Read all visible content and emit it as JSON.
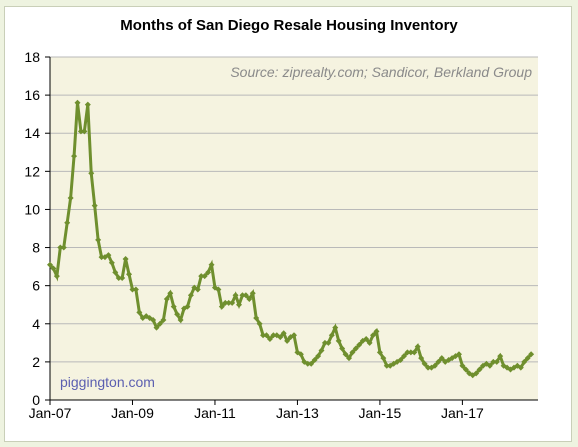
{
  "chart_data": {
    "type": "line",
    "title": "Months of San Diego Resale Housing Inventory",
    "source_note": "Source: ziprealty.com; Sandicor, Berkland Group",
    "watermark": "piggington.com",
    "xlabel": "",
    "ylabel": "",
    "ylim": [
      0,
      18
    ],
    "y_ticks": [
      0,
      2,
      4,
      6,
      8,
      10,
      12,
      14,
      16,
      18
    ],
    "x_tick_labels": [
      "Jan-07",
      "Jan-09",
      "Jan-11",
      "Jan-13",
      "Jan-15",
      "Jan-17"
    ],
    "x_range_months": [
      0,
      142
    ],
    "grid": "horizontal",
    "series_color": "#6f8f2e",
    "plot_background": "#f5f3e0",
    "series": [
      {
        "name": "",
        "start": "Jan-07",
        "frequency": "monthly",
        "values": [
          7.1,
          6.9,
          6.5,
          8.0,
          8.0,
          9.3,
          10.6,
          12.8,
          15.6,
          14.1,
          14.1,
          15.5,
          11.9,
          10.2,
          8.4,
          7.5,
          7.5,
          7.6,
          7.2,
          6.7,
          6.4,
          6.4,
          7.4,
          6.6,
          5.8,
          5.8,
          4.6,
          4.3,
          4.4,
          4.3,
          4.2,
          3.8,
          4.0,
          4.2,
          5.3,
          5.6,
          4.9,
          4.5,
          4.2,
          4.8,
          4.9,
          5.5,
          5.9,
          5.8,
          6.5,
          6.5,
          6.7,
          7.1,
          5.9,
          5.8,
          4.9,
          5.1,
          5.1,
          5.1,
          5.5,
          5.0,
          5.5,
          5.5,
          5.3,
          5.6,
          4.3,
          4.0,
          3.4,
          3.4,
          3.2,
          3.4,
          3.4,
          3.3,
          3.5,
          3.1,
          3.3,
          3.4,
          2.5,
          2.4,
          2.0,
          1.9,
          1.9,
          2.1,
          2.3,
          2.6,
          3.0,
          3.0,
          3.4,
          3.8,
          3.1,
          2.7,
          2.4,
          2.2,
          2.5,
          2.7,
          2.9,
          3.1,
          3.2,
          3.0,
          3.4,
          3.6,
          2.5,
          2.2,
          1.8,
          1.8,
          1.9,
          2.0,
          2.1,
          2.3,
          2.5,
          2.5,
          2.5,
          2.8,
          2.2,
          1.9,
          1.7,
          1.7,
          1.8,
          2.0,
          2.2,
          2.0,
          2.1,
          2.2,
          2.3,
          2.4,
          1.8,
          1.6,
          1.4,
          1.3,
          1.4,
          1.6,
          1.8,
          1.9,
          1.8,
          2.0,
          2.0,
          2.3,
          1.8,
          1.7,
          1.6,
          1.7,
          1.8,
          1.7,
          2.0,
          2.2,
          2.4
        ]
      }
    ]
  }
}
